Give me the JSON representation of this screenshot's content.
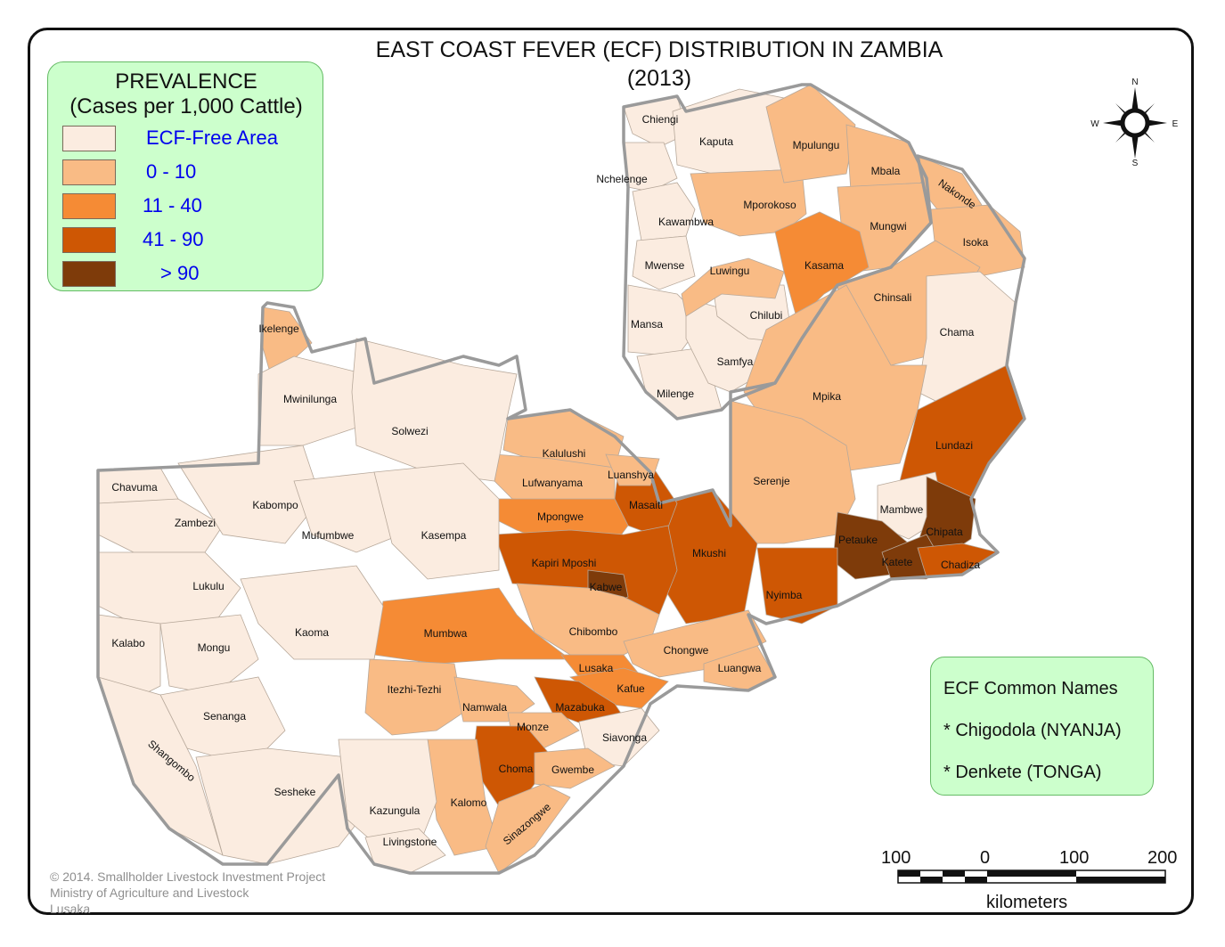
{
  "title": {
    "line1": "EAST COAST FEVER  (ECF) DISTRIBUTION IN ZAMBIA",
    "line2": "(2013)"
  },
  "legend": {
    "heading1": "PREVALENCE",
    "heading2": "(Cases per 1,000 Cattle)",
    "items": [
      {
        "label": "ECF-Free Area",
        "color": "#fbece0"
      },
      {
        "label": "0 - 10",
        "color": "#f9bb85"
      },
      {
        "label": "11 - 40",
        "color": "#f58b35"
      },
      {
        "label": "41 - 90",
        "color": "#ce5704"
      },
      {
        "label": "> 90",
        "color": "#7e3b0a"
      }
    ]
  },
  "common_names": {
    "heading": "ECF Common Names",
    "name1": "* Chigodola (NYANJA)",
    "name2": "* Denkete (TONGA)"
  },
  "compass": {
    "n": "N",
    "s": "S",
    "e": "E",
    "w": "W"
  },
  "scale": {
    "labels": [
      "100",
      "0",
      "100",
      "200"
    ],
    "unit": "kilometers"
  },
  "credit": {
    "line1": "© 2014. Smallholder Livestock Investment Project",
    "line2": "Ministry of Agriculture and Livestock",
    "line3": "Lusaka"
  },
  "districts": [
    {
      "name": "Chiengi",
      "category": 0
    },
    {
      "name": "Kaputa",
      "category": 0
    },
    {
      "name": "Mpulungu",
      "category": 1
    },
    {
      "name": "Mbala",
      "category": 1
    },
    {
      "name": "Nakonde",
      "category": 1
    },
    {
      "name": "Nchelenge",
      "category": 0
    },
    {
      "name": "Mporokoso",
      "category": 1
    },
    {
      "name": "Kawambwa",
      "category": 0
    },
    {
      "name": "Mungwi",
      "category": 1
    },
    {
      "name": "Isoka",
      "category": 1
    },
    {
      "name": "Mwense",
      "category": 0
    },
    {
      "name": "Kasama",
      "category": 2
    },
    {
      "name": "Luwingu",
      "category": 1
    },
    {
      "name": "Chinsali",
      "category": 1
    },
    {
      "name": "Chilubi",
      "category": 0
    },
    {
      "name": "Ikelenge",
      "category": 1
    },
    {
      "name": "Mansa",
      "category": 0
    },
    {
      "name": "Chama",
      "category": 0
    },
    {
      "name": "Samfya",
      "category": 0
    },
    {
      "name": "Mpika",
      "category": 1
    },
    {
      "name": "Milenge",
      "category": 0
    },
    {
      "name": "Mwinilunga",
      "category": 0
    },
    {
      "name": "Solwezi",
      "category": 0
    },
    {
      "name": "Lundazi",
      "category": 3
    },
    {
      "name": "Kalulushi",
      "category": 1
    },
    {
      "name": "Serenje",
      "category": 1
    },
    {
      "name": "Luanshya",
      "category": 1
    },
    {
      "name": "Lufwanyama",
      "category": 1
    },
    {
      "name": "Chavuma",
      "category": 0
    },
    {
      "name": "Kabompo",
      "category": 0
    },
    {
      "name": "Masaiti",
      "category": 3
    },
    {
      "name": "Mambwe",
      "category": 0
    },
    {
      "name": "Mpongwe",
      "category": 2
    },
    {
      "name": "Zambezi",
      "category": 0
    },
    {
      "name": "Mufumbwe",
      "category": 0
    },
    {
      "name": "Kasempa",
      "category": 0
    },
    {
      "name": "Chipata",
      "category": 4
    },
    {
      "name": "Petauke",
      "category": 4
    },
    {
      "name": "Kapiri Mposhi",
      "category": 3
    },
    {
      "name": "Mkushi",
      "category": 3
    },
    {
      "name": "Katete",
      "category": 4
    },
    {
      "name": "Chadiza",
      "category": 3
    },
    {
      "name": "Lukulu",
      "category": 0
    },
    {
      "name": "Kabwe",
      "category": 4
    },
    {
      "name": "Nyimba",
      "category": 3
    },
    {
      "name": "Kaoma",
      "category": 0
    },
    {
      "name": "Mumbwa",
      "category": 2
    },
    {
      "name": "Chibombo",
      "category": 1
    },
    {
      "name": "Kalabo",
      "category": 0
    },
    {
      "name": "Mongu",
      "category": 0
    },
    {
      "name": "Chongwe",
      "category": 1
    },
    {
      "name": "Lusaka",
      "category": 2
    },
    {
      "name": "Luangwa",
      "category": 1
    },
    {
      "name": "Itezhi-Tezhi",
      "category": 1
    },
    {
      "name": "Kafue",
      "category": 2
    },
    {
      "name": "Namwala",
      "category": 1
    },
    {
      "name": "Mazabuka",
      "category": 3
    },
    {
      "name": "Senanga",
      "category": 0
    },
    {
      "name": "Monze",
      "category": 1
    },
    {
      "name": "Siavonga",
      "category": 0
    },
    {
      "name": "Choma",
      "category": 3
    },
    {
      "name": "Shangombo",
      "category": 0
    },
    {
      "name": "Gwembe",
      "category": 1
    },
    {
      "name": "Sesheke",
      "category": 0
    },
    {
      "name": "Kalomo",
      "category": 1
    },
    {
      "name": "Kazungula",
      "category": 0
    },
    {
      "name": "Sinazongwe",
      "category": 1
    },
    {
      "name": "Livingstone",
      "category": 0
    }
  ]
}
